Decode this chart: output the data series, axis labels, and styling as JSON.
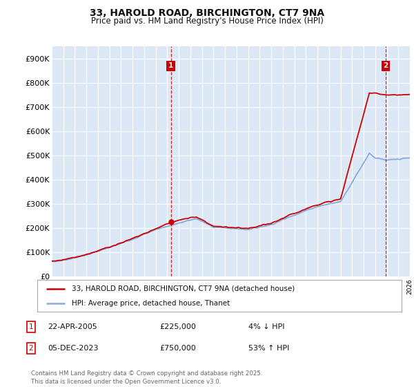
{
  "title": "33, HAROLD ROAD, BIRCHINGTON, CT7 9NA",
  "subtitle": "Price paid vs. HM Land Registry's House Price Index (HPI)",
  "legend_line1": "33, HAROLD ROAD, BIRCHINGTON, CT7 9NA (detached house)",
  "legend_line2": "HPI: Average price, detached house, Thanet",
  "annotation1_date": "22-APR-2005",
  "annotation1_price": "£225,000",
  "annotation1_hpi": "4% ↓ HPI",
  "annotation2_date": "05-DEC-2023",
  "annotation2_price": "£750,000",
  "annotation2_hpi": "53% ↑ HPI",
  "footer": "Contains HM Land Registry data © Crown copyright and database right 2025.\nThis data is licensed under the Open Government Licence v3.0.",
  "ylim": [
    0,
    950000
  ],
  "yticks": [
    0,
    100000,
    200000,
    300000,
    400000,
    500000,
    600000,
    700000,
    800000,
    900000
  ],
  "ytick_labels": [
    "£0",
    "£100K",
    "£200K",
    "£300K",
    "£400K",
    "£500K",
    "£600K",
    "£700K",
    "£800K",
    "£900K"
  ],
  "hpi_color": "#88aadd",
  "price_color": "#cc0000",
  "bg_color": "#dce8f5",
  "grid_color": "#ffffff",
  "sale1_x": 2005.31,
  "sale1_y": 225000,
  "sale2_x": 2023.92,
  "sale2_y": 750000,
  "xmin": 1995,
  "xmax": 2026
}
